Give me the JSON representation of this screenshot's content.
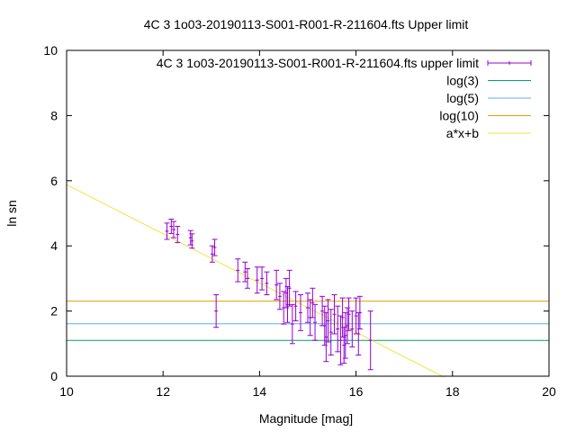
{
  "chart_data": {
    "type": "scatter",
    "title": "4C 3 1o03-20190113-S001-R001-R-211604.fts Upper limit",
    "xlabel": "Magnitude [mag]",
    "ylabel": "ln sn",
    "xlim": [
      10,
      20
    ],
    "ylim": [
      0,
      10
    ],
    "xticks": [
      10,
      12,
      14,
      16,
      18,
      20
    ],
    "yticks": [
      0,
      2,
      4,
      6,
      8,
      10
    ],
    "grid": false,
    "legend_position": "top-right",
    "series": [
      {
        "name": "4C 3 1o03-20190113-S001-R001-R-211604.fts upper limit",
        "kind": "errorbar",
        "color": "#9400d3",
        "points": [
          {
            "x": 12.08,
            "y": 4.45,
            "err": 0.25
          },
          {
            "x": 12.17,
            "y": 4.6,
            "err": 0.22
          },
          {
            "x": 12.22,
            "y": 4.5,
            "err": 0.25
          },
          {
            "x": 12.3,
            "y": 4.35,
            "err": 0.25
          },
          {
            "x": 12.57,
            "y": 4.25,
            "err": 0.22
          },
          {
            "x": 12.6,
            "y": 4.15,
            "err": 0.22
          },
          {
            "x": 13.02,
            "y": 3.75,
            "err": 0.25
          },
          {
            "x": 13.07,
            "y": 3.95,
            "err": 0.25
          },
          {
            "x": 13.1,
            "y": 2.0,
            "err": 0.5
          },
          {
            "x": 13.55,
            "y": 3.25,
            "err": 0.35
          },
          {
            "x": 13.7,
            "y": 3.2,
            "err": 0.3
          },
          {
            "x": 13.75,
            "y": 3.0,
            "err": 0.3
          },
          {
            "x": 13.95,
            "y": 2.95,
            "err": 0.4
          },
          {
            "x": 14.05,
            "y": 3.0,
            "err": 0.35
          },
          {
            "x": 14.15,
            "y": 2.85,
            "err": 0.35
          },
          {
            "x": 14.35,
            "y": 2.8,
            "err": 0.45
          },
          {
            "x": 14.42,
            "y": 2.45,
            "err": 0.4
          },
          {
            "x": 14.5,
            "y": 2.1,
            "err": 0.5
          },
          {
            "x": 14.55,
            "y": 2.55,
            "err": 0.45
          },
          {
            "x": 14.58,
            "y": 2.2,
            "err": 0.55
          },
          {
            "x": 14.62,
            "y": 2.7,
            "err": 0.55
          },
          {
            "x": 14.68,
            "y": 1.6,
            "err": 0.6
          },
          {
            "x": 14.75,
            "y": 2.15,
            "err": 0.45
          },
          {
            "x": 14.85,
            "y": 1.95,
            "err": 0.55
          },
          {
            "x": 15.0,
            "y": 2.1,
            "err": 0.45
          },
          {
            "x": 15.05,
            "y": 1.8,
            "err": 0.55
          },
          {
            "x": 15.1,
            "y": 2.25,
            "err": 0.45
          },
          {
            "x": 15.15,
            "y": 1.65,
            "err": 0.55
          },
          {
            "x": 15.3,
            "y": 2.0,
            "err": 0.45
          },
          {
            "x": 15.35,
            "y": 1.55,
            "err": 0.6
          },
          {
            "x": 15.38,
            "y": 1.2,
            "err": 0.75
          },
          {
            "x": 15.42,
            "y": 1.7,
            "err": 0.65
          },
          {
            "x": 15.48,
            "y": 1.35,
            "err": 0.7
          },
          {
            "x": 15.55,
            "y": 1.9,
            "err": 0.6
          },
          {
            "x": 15.62,
            "y": 1.45,
            "err": 0.7
          },
          {
            "x": 15.68,
            "y": 1.1,
            "err": 0.75
          },
          {
            "x": 15.72,
            "y": 1.8,
            "err": 0.6
          },
          {
            "x": 15.75,
            "y": 0.95,
            "err": 0.55
          },
          {
            "x": 15.78,
            "y": 1.25,
            "err": 0.7
          },
          {
            "x": 15.82,
            "y": 1.55,
            "err": 0.55
          },
          {
            "x": 15.85,
            "y": 1.9,
            "err": 0.5
          },
          {
            "x": 15.92,
            "y": 1.45,
            "err": 0.55
          },
          {
            "x": 16.0,
            "y": 1.85,
            "err": 0.55
          },
          {
            "x": 16.05,
            "y": 1.3,
            "err": 0.65
          },
          {
            "x": 16.08,
            "y": 1.95,
            "err": 0.5
          },
          {
            "x": 16.3,
            "y": 1.1,
            "err": 0.9
          }
        ]
      },
      {
        "name": "log(3)",
        "kind": "hline",
        "y": 1.0986,
        "color": "#009e73"
      },
      {
        "name": "log(5)",
        "kind": "hline",
        "y": 1.6094,
        "color": "#56b4e9"
      },
      {
        "name": "log(10)",
        "kind": "hline",
        "y": 2.3026,
        "color": "#e69f00"
      },
      {
        "name": "a*x+b",
        "kind": "line",
        "color": "#f0e442",
        "a": -0.755,
        "b": 13.43
      }
    ]
  }
}
